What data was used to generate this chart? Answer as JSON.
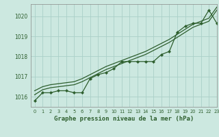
{
  "title": "Graphe pression niveau de la mer (hPa)",
  "background_color": "#cce8e0",
  "grid_color": "#aad0c8",
  "line_color": "#2d5e2d",
  "ylim": [
    1015.5,
    1020.6
  ],
  "xlim": [
    -0.5,
    23
  ],
  "yticks": [
    1016,
    1017,
    1018,
    1019,
    1020
  ],
  "xticks": [
    0,
    1,
    2,
    3,
    4,
    5,
    6,
    7,
    8,
    9,
    10,
    11,
    12,
    13,
    14,
    15,
    16,
    17,
    18,
    19,
    20,
    21,
    22,
    23
  ],
  "hours": [
    0,
    1,
    2,
    3,
    4,
    5,
    6,
    7,
    8,
    9,
    10,
    11,
    12,
    13,
    14,
    15,
    16,
    17,
    18,
    19,
    20,
    21,
    22,
    23
  ],
  "pressure_measured": [
    1015.8,
    1016.2,
    1016.2,
    1016.3,
    1016.3,
    1016.2,
    1016.2,
    1016.9,
    1017.1,
    1017.2,
    1017.4,
    1017.75,
    1017.75,
    1017.75,
    1017.75,
    1017.75,
    1018.1,
    1018.25,
    1019.2,
    1019.5,
    1019.65,
    1019.65,
    1020.3,
    1019.65
  ],
  "pressure_trend1": [
    1016.1,
    1016.35,
    1016.45,
    1016.5,
    1016.55,
    1016.6,
    1016.75,
    1016.95,
    1017.15,
    1017.35,
    1017.5,
    1017.65,
    1017.8,
    1017.95,
    1018.1,
    1018.3,
    1018.5,
    1018.7,
    1018.95,
    1019.2,
    1019.45,
    1019.6,
    1019.75,
    1020.3
  ],
  "pressure_trend2": [
    1016.3,
    1016.5,
    1016.6,
    1016.65,
    1016.7,
    1016.75,
    1016.9,
    1017.1,
    1017.3,
    1017.5,
    1017.65,
    1017.8,
    1017.95,
    1018.1,
    1018.25,
    1018.45,
    1018.65,
    1018.85,
    1019.1,
    1019.35,
    1019.6,
    1019.75,
    1019.9,
    1020.45
  ]
}
